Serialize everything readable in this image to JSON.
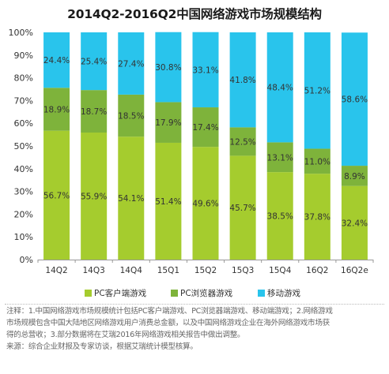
{
  "chart_data": {
    "type": "bar",
    "stacked": true,
    "percent": true,
    "title": "2014Q2-2016Q2中国网络游戏市场规模结构",
    "categories": [
      "14Q2",
      "14Q3",
      "14Q4",
      "15Q1",
      "15Q2",
      "15Q3",
      "15Q4",
      "16Q2",
      "16Q2e"
    ],
    "series": [
      {
        "name": "PC客户端游戏",
        "color": "#a5cc2e",
        "values": [
          56.7,
          55.9,
          54.1,
          51.4,
          49.6,
          45.7,
          38.5,
          37.8,
          32.4
        ],
        "labels": [
          "56.7%",
          "55.9%",
          "54.1%",
          "51.4%",
          "49.6%",
          "45.7%",
          "38.5%",
          "37.8%",
          "32.4%"
        ]
      },
      {
        "name": "PC浏览器游戏",
        "color": "#7eb33b",
        "values": [
          18.9,
          18.7,
          18.5,
          17.9,
          17.4,
          12.5,
          13.1,
          11.0,
          8.9
        ],
        "labels": [
          "18.9%",
          "18.7%",
          "18.5%",
          "17.9%",
          "17.4%",
          "12.5%",
          "13.1%",
          "11.0%",
          "8.9%"
        ]
      },
      {
        "name": "移动游戏",
        "color": "#29c4ec",
        "values": [
          24.4,
          25.4,
          27.4,
          30.8,
          33.1,
          41.8,
          48.4,
          51.2,
          58.6
        ],
        "labels": [
          "24.4%",
          "25.4%",
          "27.4%",
          "30.8%",
          "33.1%",
          "41.8%",
          "48.4%",
          "51.2%",
          "58.6%"
        ]
      }
    ],
    "ylim": [
      0,
      100
    ],
    "yticks": [
      "0%",
      "10%",
      "20%",
      "30%",
      "40%",
      "50%",
      "60%",
      "70%",
      "80%",
      "90%",
      "100%"
    ],
    "grid": false,
    "legend_position": "bottom"
  },
  "notes": {
    "line1": "注释：1.中国网络游戏市场规模统计包括PC客户端游戏、PC浏览器端游戏、移动端游戏；2.网络游戏",
    "line2": "市场规模包含中国大陆地区网络游戏用户消费总金额，以及中国网络游戏企业在海外网络游戏市场获",
    "line3": "得的总营收；3.部分数据将在艾瑞2016年网络游戏相关报告中做出调整。",
    "line4": "来源：综合企业财报及专家访谈，根据艾瑞统计模型核算。"
  }
}
